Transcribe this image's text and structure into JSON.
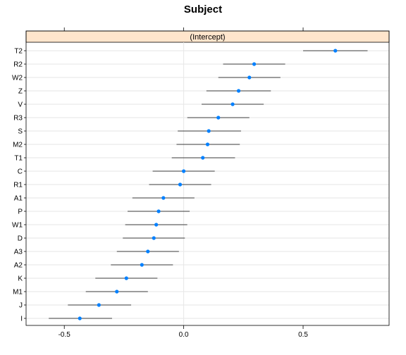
{
  "chart_data": {
    "type": "dotplot",
    "title": "Subject",
    "panel_label": "(Intercept)",
    "xlim": [
      -0.66,
      0.86
    ],
    "x_ticks": [
      -0.5,
      0.0,
      0.5
    ],
    "x_tick_labels": [
      "-0.5",
      "0.0",
      "0.5"
    ],
    "grid": true,
    "point_color": "#0080ff",
    "strip_color": "#ffe5cc",
    "categories": [
      "T2",
      "R2",
      "W2",
      "Z",
      "V",
      "R3",
      "S",
      "M2",
      "T1",
      "C",
      "R1",
      "A1",
      "P",
      "W1",
      "D",
      "A3",
      "A2",
      "K",
      "M1",
      "J",
      "I"
    ],
    "values": [
      0.635,
      0.295,
      0.275,
      0.23,
      0.205,
      0.145,
      0.105,
      0.1,
      0.08,
      0.0,
      -0.015,
      -0.085,
      -0.105,
      -0.115,
      -0.125,
      -0.15,
      -0.175,
      -0.24,
      -0.28,
      -0.355,
      -0.435
    ],
    "lower": [
      0.5,
      0.165,
      0.145,
      0.095,
      0.075,
      0.015,
      -0.025,
      -0.03,
      -0.05,
      -0.13,
      -0.145,
      -0.215,
      -0.235,
      -0.245,
      -0.255,
      -0.28,
      -0.305,
      -0.37,
      -0.41,
      -0.485,
      -0.565
    ],
    "upper": [
      0.77,
      0.425,
      0.405,
      0.365,
      0.335,
      0.275,
      0.24,
      0.235,
      0.215,
      0.13,
      0.115,
      0.045,
      0.025,
      0.015,
      0.005,
      -0.02,
      -0.045,
      -0.11,
      -0.15,
      -0.22,
      -0.3
    ]
  }
}
